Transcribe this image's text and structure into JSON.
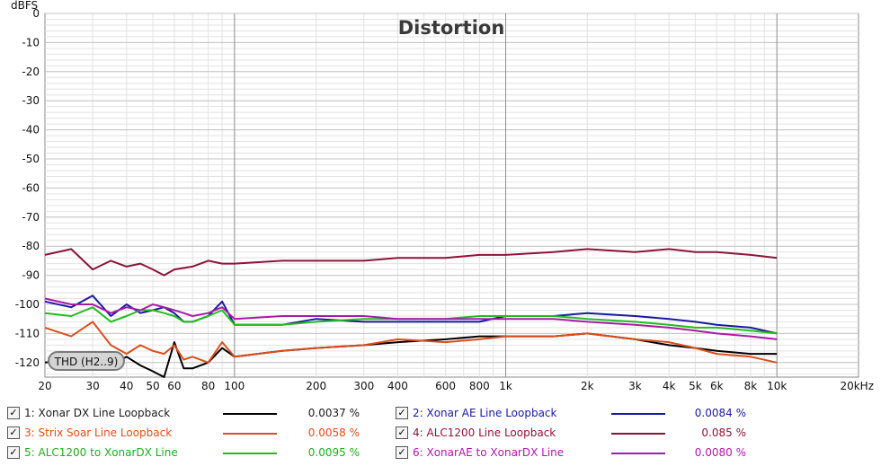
{
  "chart_data": {
    "type": "line",
    "title": "Distortion",
    "ylabel": "dBFS",
    "xlim": [
      20,
      20000
    ],
    "ylim": [
      -125,
      0
    ],
    "x_scale": "log",
    "grid": true,
    "y_ticks": [
      0,
      -10,
      -20,
      -30,
      -40,
      -50,
      -60,
      -70,
      -80,
      -90,
      -100,
      -110,
      -120
    ],
    "x_ticks": [
      {
        "value": 20,
        "label": "20"
      },
      {
        "value": 30,
        "label": "30"
      },
      {
        "value": 40,
        "label": "40"
      },
      {
        "value": 50,
        "label": "50"
      },
      {
        "value": 60,
        "label": "60"
      },
      {
        "value": 80,
        "label": "80"
      },
      {
        "value": 100,
        "label": "100"
      },
      {
        "value": 200,
        "label": "200"
      },
      {
        "value": 300,
        "label": "300"
      },
      {
        "value": 400,
        "label": "400"
      },
      {
        "value": 600,
        "label": "600"
      },
      {
        "value": 800,
        "label": "800"
      },
      {
        "value": 1000,
        "label": "1k"
      },
      {
        "value": 2000,
        "label": "2k"
      },
      {
        "value": 3000,
        "label": "3k"
      },
      {
        "value": 4000,
        "label": "4k"
      },
      {
        "value": 5000,
        "label": "5k"
      },
      {
        "value": 6000,
        "label": "6k"
      },
      {
        "value": 8000,
        "label": "8k"
      },
      {
        "value": 10000,
        "label": "10k"
      },
      {
        "value": 20000,
        "label": "20kHz"
      }
    ],
    "annotation": "THD (H2..9)",
    "series": [
      {
        "name": "1: Xonar DX Line Loopback",
        "value": "0.0037 %",
        "color": "#000000",
        "x": [
          20,
          25,
          30,
          35,
          40,
          45,
          50,
          55,
          60,
          65,
          70,
          80,
          90,
          100,
          150,
          200,
          300,
          400,
          600,
          800,
          1000,
          1500,
          2000,
          3000,
          4000,
          5000,
          6000,
          8000,
          10000
        ],
        "y": [
          -120,
          -119,
          -117,
          -121,
          -118,
          -121,
          -123,
          -125,
          -113,
          -122,
          -122,
          -120,
          -115,
          -118,
          -116,
          -115,
          -114,
          -113,
          -112,
          -111,
          -111,
          -111,
          -110,
          -112,
          -114,
          -115,
          -116,
          -117,
          -117
        ]
      },
      {
        "name": "2: Xonar AE Line Loopback",
        "value": "0.0084 %",
        "color": "#1a1a9c",
        "x": [
          20,
          25,
          30,
          35,
          40,
          45,
          50,
          55,
          60,
          65,
          70,
          80,
          90,
          100,
          150,
          200,
          300,
          400,
          600,
          800,
          1000,
          1500,
          2000,
          3000,
          4000,
          5000,
          6000,
          8000,
          10000
        ],
        "y": [
          -99,
          -101,
          -97,
          -104,
          -100,
          -103,
          -102,
          -101,
          -103,
          -106,
          -106,
          -104,
          -99,
          -107,
          -107,
          -105,
          -106,
          -106,
          -106,
          -106,
          -104,
          -104,
          -103,
          -104,
          -105,
          -106,
          -107,
          -108,
          -110
        ]
      },
      {
        "name": "3: Strix Soar Line Loopback",
        "value": "0.0058 %",
        "color": "#d94f1e",
        "x": [
          20,
          25,
          30,
          35,
          40,
          45,
          50,
          55,
          60,
          65,
          70,
          80,
          90,
          100,
          150,
          200,
          300,
          400,
          600,
          800,
          1000,
          1500,
          2000,
          3000,
          4000,
          5000,
          6000,
          8000,
          10000
        ],
        "y": [
          -108,
          -111,
          -106,
          -114,
          -117,
          -114,
          -116,
          -117,
          -114,
          -119,
          -118,
          -120,
          -113,
          -118,
          -116,
          -115,
          -114,
          -112,
          -113,
          -112,
          -111,
          -111,
          -110,
          -112,
          -113,
          -115,
          -117,
          -118,
          -120
        ]
      },
      {
        "name": "4: ALC1200 Line Loopback",
        "value": "0.085 %",
        "color": "#8c1437",
        "x": [
          20,
          25,
          30,
          35,
          40,
          45,
          50,
          55,
          60,
          70,
          80,
          90,
          100,
          150,
          200,
          300,
          400,
          600,
          800,
          1000,
          1500,
          2000,
          3000,
          4000,
          5000,
          6000,
          8000,
          10000
        ],
        "y": [
          -83,
          -81,
          -88,
          -85,
          -87,
          -86,
          -88,
          -90,
          -88,
          -87,
          -85,
          -86,
          -86,
          -85,
          -85,
          -85,
          -84,
          -84,
          -83,
          -83,
          -82,
          -81,
          -82,
          -81,
          -82,
          -82,
          -83,
          -84
        ]
      },
      {
        "name": "5: ALC1200 to XonarDX Line",
        "value": "0.0095 %",
        "color": "#22bb22",
        "x": [
          20,
          25,
          30,
          35,
          40,
          45,
          50,
          55,
          60,
          65,
          70,
          80,
          90,
          100,
          150,
          200,
          300,
          400,
          600,
          800,
          1000,
          1500,
          2000,
          3000,
          4000,
          5000,
          6000,
          8000,
          10000
        ],
        "y": [
          -103,
          -104,
          -101,
          -106,
          -104,
          -102,
          -102,
          -103,
          -104,
          -106,
          -106,
          -104,
          -102,
          -107,
          -107,
          -106,
          -105,
          -105,
          -105,
          -104,
          -104,
          -104,
          -105,
          -106,
          -107,
          -108,
          -108,
          -109,
          -110
        ]
      },
      {
        "name": "6: XonarAE to XonarDX Line",
        "value": "0.0080 %",
        "color": "#aa1aa8",
        "x": [
          20,
          25,
          30,
          35,
          40,
          45,
          50,
          55,
          60,
          65,
          70,
          80,
          90,
          100,
          150,
          200,
          300,
          400,
          600,
          800,
          1000,
          1500,
          2000,
          3000,
          4000,
          5000,
          6000,
          8000,
          10000
        ],
        "y": [
          -98,
          -100,
          -100,
          -103,
          -101,
          -102,
          -100,
          -101,
          -102,
          -103,
          -104,
          -103,
          -101,
          -105,
          -104,
          -104,
          -104,
          -105,
          -105,
          -105,
          -105,
          -105,
          -106,
          -107,
          -108,
          -109,
          -110,
          -111,
          -112
        ]
      }
    ]
  }
}
